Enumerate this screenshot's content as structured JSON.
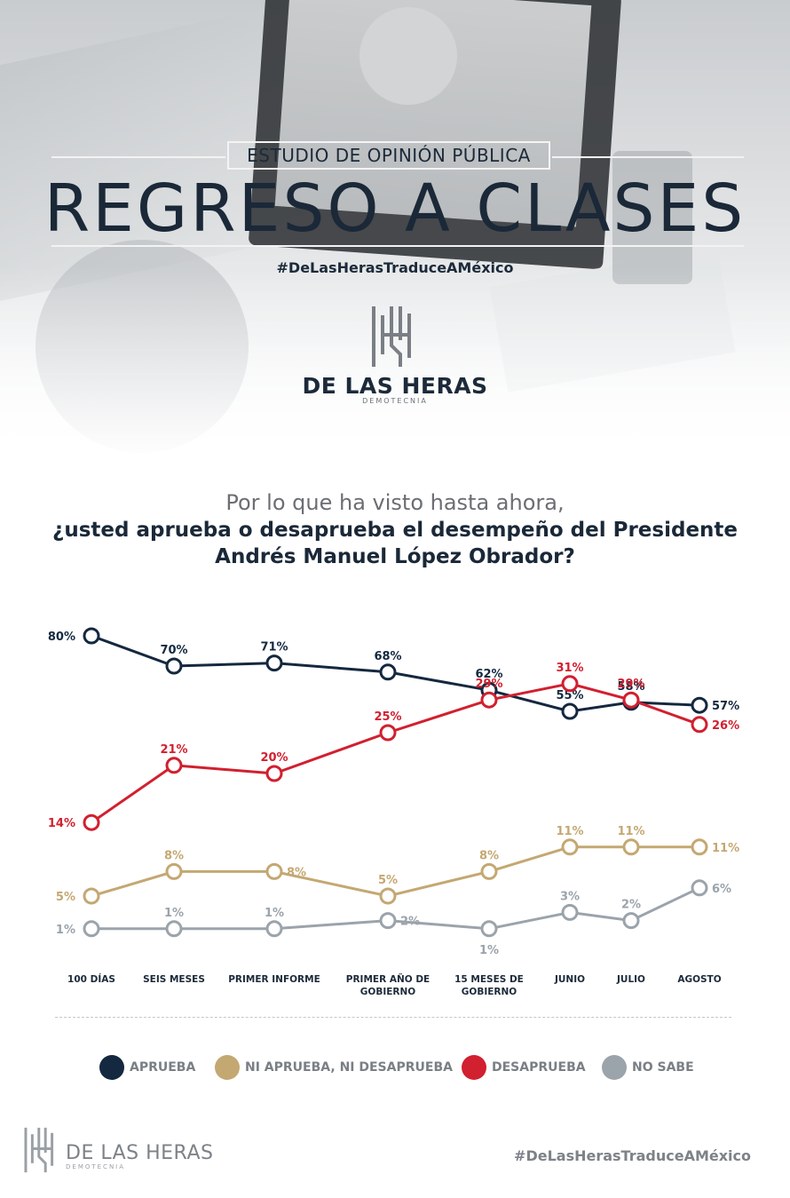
{
  "header": {
    "subtitle": "ESTUDIO DE OPINIÓN PÚBLICA",
    "title": "REGRESO A CLASES",
    "hashtag": "#DeLasHerasTraduceAMéxico",
    "brand_name": "DE LAS HERAS",
    "brand_sub": "DEMOTECNIA"
  },
  "question": {
    "line1": "Por lo que ha visto hasta ahora,",
    "line2": "¿usted aprueba o desaprueba el desempeño del Presidente",
    "line3": "Andrés Manuel López Obrador?"
  },
  "chart_data": {
    "type": "line",
    "categories": [
      "100 DÍAS",
      "SEIS MESES",
      "PRIMER INFORME",
      "PRIMER AÑO DE GOBIERNO",
      "15 MESES DE GOBIERNO",
      "JUNIO",
      "JULIO",
      "AGOSTO"
    ],
    "category_lines": [
      [
        "100 DÍAS"
      ],
      [
        "SEIS MESES"
      ],
      [
        "PRIMER INFORME"
      ],
      [
        "PRIMER AÑO DE",
        "GOBIERNO"
      ],
      [
        "15 MESES DE",
        "GOBIERNO"
      ],
      [
        "JUNIO"
      ],
      [
        "JULIO"
      ],
      [
        "AGOSTO"
      ]
    ],
    "series": [
      {
        "name": "APRUEBA",
        "color": "#14283f",
        "values": [
          80,
          70,
          71,
          68,
          62,
          55,
          58,
          57
        ]
      },
      {
        "name": "DESAPRUEBA",
        "color": "#d1202f",
        "values": [
          14,
          21,
          20,
          25,
          29,
          31,
          29,
          26
        ]
      },
      {
        "name": "NI APRUEBA, NI DESAPRUEBA",
        "color": "#c4a872",
        "values": [
          5,
          8,
          8,
          5,
          8,
          11,
          11,
          11
        ]
      },
      {
        "name": "NO SABE",
        "color": "#9ba3ab",
        "values": [
          1,
          1,
          1,
          2,
          1,
          3,
          2,
          6
        ]
      }
    ],
    "value_suffix": "%",
    "grid": false,
    "legend_position": "bottom"
  },
  "legend": [
    {
      "name": "APRUEBA",
      "color": "#14283f"
    },
    {
      "name": "NI APRUEBA, NI DESAPRUEBA",
      "color": "#c4a872"
    },
    {
      "name": "DESAPRUEBA",
      "color": "#d1202f"
    },
    {
      "name": "NO SABE",
      "color": "#9ba3ab"
    }
  ],
  "footer": {
    "brand_name": "DE LAS HERAS",
    "brand_sub": "DEMOTECNIA",
    "hashtag": "#DeLasHerasTraduceAMéxico"
  }
}
